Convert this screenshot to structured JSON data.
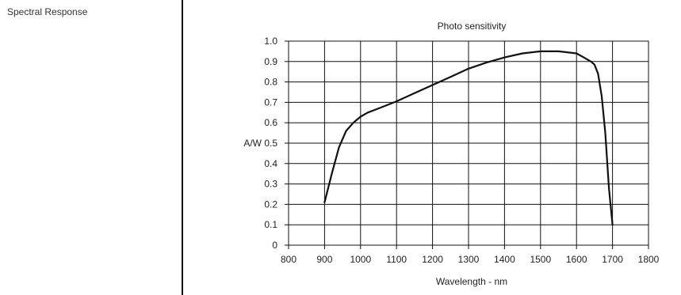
{
  "section": {
    "label": "Spectral Response"
  },
  "chart_data": {
    "type": "line",
    "title": "Photo sensitivity",
    "xlabel": "Wavelength - nm",
    "ylabel": "A/W",
    "xlim": [
      800,
      1800
    ],
    "ylim": [
      0,
      1.0
    ],
    "x_ticks": [
      800,
      900,
      1000,
      1100,
      1200,
      1300,
      1400,
      1500,
      1600,
      1700,
      1800
    ],
    "y_ticks": [
      0,
      0.1,
      0.2,
      0.3,
      0.4,
      0.5,
      0.6,
      0.7,
      0.8,
      0.9,
      1.0
    ],
    "x_tick_labels": [
      "800",
      "900",
      "1000",
      "1100",
      "1200",
      "1300",
      "1400",
      "1500",
      "1600",
      "1700",
      "1800"
    ],
    "y_tick_labels": [
      "0",
      "0.1",
      "0.2",
      "0.3",
      "0.4",
      "0.5",
      "0.6",
      "0.7",
      "0.8",
      "0.9",
      "1.0"
    ],
    "grid": true,
    "line_color": "#111111",
    "series": [
      {
        "x": [
          900,
          920,
          940,
          960,
          980,
          1000,
          1020,
          1050,
          1100,
          1150,
          1200,
          1250,
          1300,
          1350,
          1400,
          1450,
          1500,
          1550,
          1600,
          1620,
          1640,
          1650,
          1660,
          1670,
          1680,
          1690,
          1700
        ],
        "y": [
          0.21,
          0.35,
          0.48,
          0.56,
          0.6,
          0.63,
          0.65,
          0.67,
          0.705,
          0.745,
          0.785,
          0.825,
          0.865,
          0.895,
          0.92,
          0.94,
          0.95,
          0.95,
          0.94,
          0.92,
          0.9,
          0.885,
          0.84,
          0.73,
          0.55,
          0.28,
          0.1
        ]
      }
    ]
  }
}
